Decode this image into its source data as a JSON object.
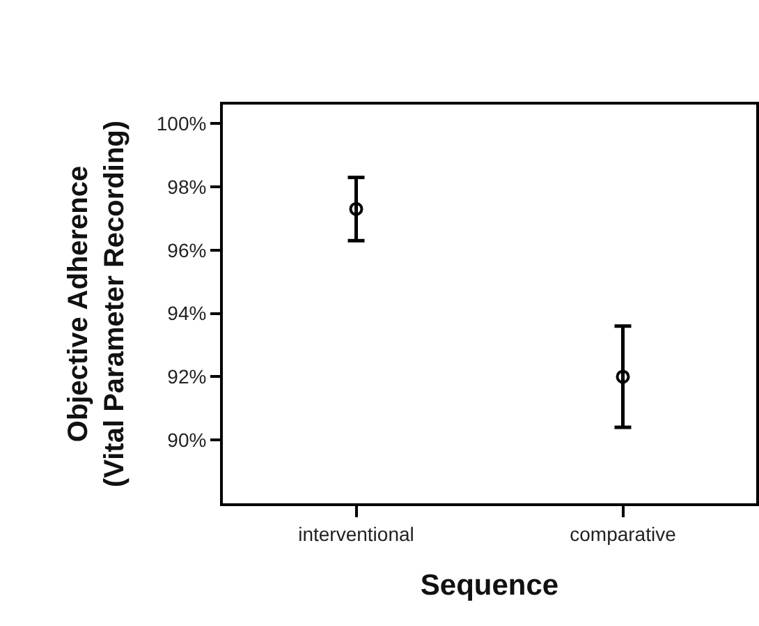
{
  "chart_data": {
    "type": "scatter",
    "xlabel": "Sequence",
    "ylabel": "Objective Adherence\n(Vital Parameter Recording)",
    "categories": [
      "interventional",
      "comparative"
    ],
    "series": [
      {
        "color": "#000000",
        "values": [
          97.3,
          92.0
        ],
        "errors": [
          [
            96.3,
            98.3
          ],
          [
            90.4,
            93.6
          ]
        ]
      }
    ],
    "ylim": [
      88,
      100.6
    ],
    "yticks": [
      {
        "value": 90,
        "label": "90%"
      },
      {
        "value": 92,
        "label": "92%"
      },
      {
        "value": 94,
        "label": "94%"
      },
      {
        "value": 96,
        "label": "96%"
      },
      {
        "value": 98,
        "label": "98%"
      },
      {
        "value": 100,
        "label": "100%"
      }
    ],
    "marker": "circle"
  }
}
